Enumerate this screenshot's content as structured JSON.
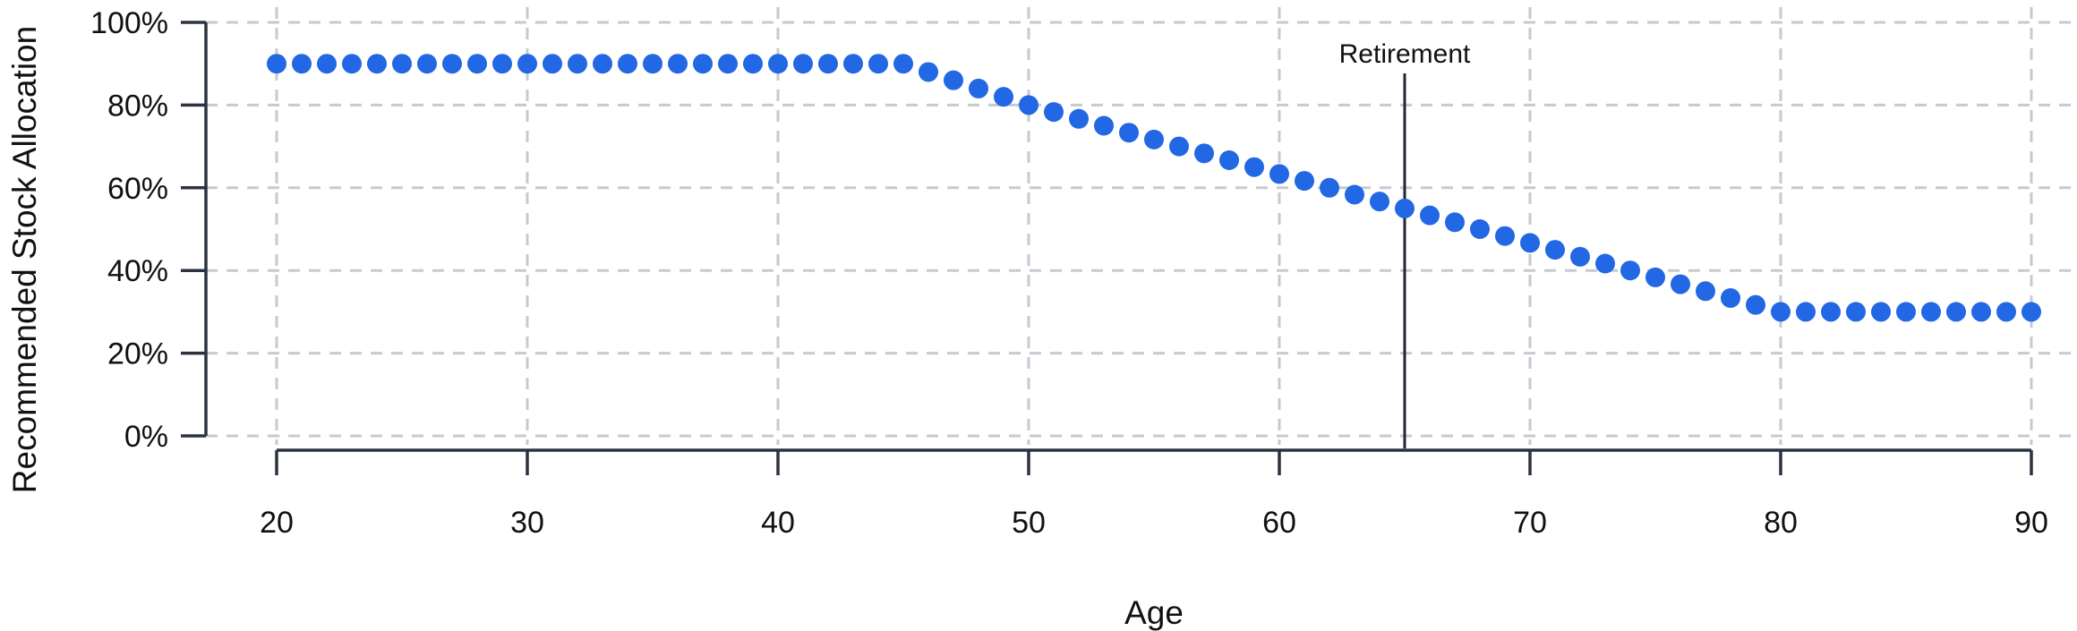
{
  "chart_data": {
    "type": "scatter",
    "title": "",
    "xlabel": "Age",
    "ylabel": "Recommended Stock Allocation",
    "xlim": [
      20,
      90
    ],
    "ylim": [
      0,
      100
    ],
    "x_ticks": [
      20,
      30,
      40,
      50,
      60,
      70,
      80,
      90
    ],
    "x_tick_labels": [
      "20",
      "30",
      "40",
      "50",
      "60",
      "70",
      "80",
      "90"
    ],
    "y_ticks": [
      0,
      20,
      40,
      60,
      80,
      100
    ],
    "y_tick_labels": [
      "0%",
      "20%",
      "40%",
      "60%",
      "80%",
      "100%"
    ],
    "grid": "dashed-both-directions",
    "legend": "none",
    "annotation": {
      "label": "Retirement",
      "x": 65
    },
    "x": [
      20,
      21,
      22,
      23,
      24,
      25,
      26,
      27,
      28,
      29,
      30,
      31,
      32,
      33,
      34,
      35,
      36,
      37,
      38,
      39,
      40,
      41,
      42,
      43,
      44,
      45,
      46,
      47,
      48,
      49,
      50,
      51,
      52,
      53,
      54,
      55,
      56,
      57,
      58,
      59,
      60,
      61,
      62,
      63,
      64,
      65,
      66,
      67,
      68,
      69,
      70,
      71,
      72,
      73,
      74,
      75,
      76,
      77,
      78,
      79,
      80,
      81,
      82,
      83,
      84,
      85,
      86,
      87,
      88,
      89,
      90
    ],
    "series": [
      {
        "name": "recommended-stock-allocation",
        "marker": "circle",
        "color": "#2267E3",
        "values": [
          90,
          90,
          90,
          90,
          90,
          90,
          90,
          90,
          90,
          90,
          90,
          90,
          90,
          90,
          90,
          90,
          90,
          90,
          90,
          90,
          90,
          90,
          90,
          90,
          90,
          90,
          88,
          86,
          84,
          82,
          80,
          78.33,
          76.67,
          75,
          73.33,
          71.67,
          70,
          68.33,
          66.67,
          65,
          63.33,
          61.67,
          60,
          58.33,
          56.67,
          55,
          53.33,
          51.67,
          50,
          48.33,
          46.67,
          45,
          43.33,
          41.67,
          40,
          38.33,
          36.67,
          35,
          33.33,
          31.67,
          30,
          30,
          30,
          30,
          30,
          30,
          30,
          30,
          30,
          30,
          30
        ]
      }
    ],
    "colors": {
      "dot": "#2267E3",
      "axis": "#2B3340",
      "grid": "#C7CAD0",
      "text": "#111111",
      "annotation_line": "#21262F"
    }
  }
}
